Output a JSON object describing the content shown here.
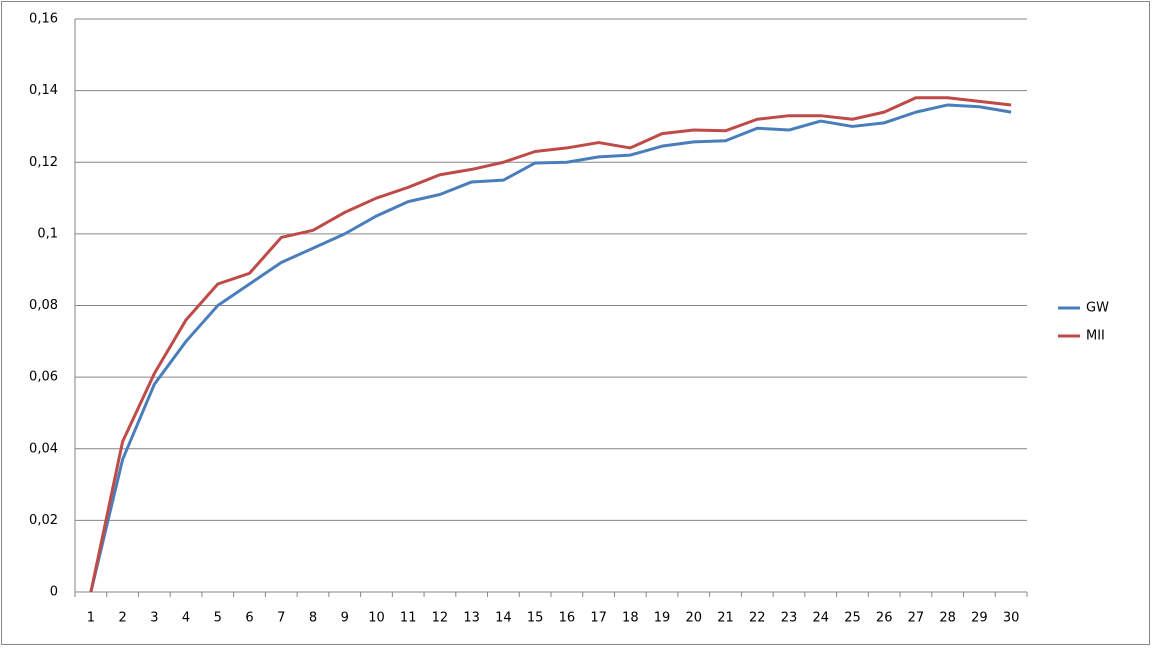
{
  "chart_data": {
    "type": "line",
    "categories": [
      "1",
      "2",
      "3",
      "4",
      "5",
      "6",
      "7",
      "8",
      "9",
      "10",
      "11",
      "12",
      "13",
      "14",
      "15",
      "16",
      "17",
      "18",
      "19",
      "20",
      "21",
      "22",
      "23",
      "24",
      "25",
      "26",
      "27",
      "28",
      "29",
      "30"
    ],
    "series": [
      {
        "name": "GW",
        "color": "#4a7ebb",
        "values": [
          0,
          0.037,
          0.058,
          0.07,
          0.08,
          0.086,
          0.092,
          0.096,
          0.1,
          0.105,
          0.109,
          0.111,
          0.1145,
          0.115,
          0.1198,
          0.12,
          0.1215,
          0.122,
          0.1245,
          0.1257,
          0.126,
          0.1295,
          0.129,
          0.1315,
          0.13,
          0.131,
          0.134,
          0.136,
          0.1355,
          0.134
        ]
      },
      {
        "name": "MII",
        "color": "#be4b48",
        "values": [
          0,
          0.042,
          0.061,
          0.076,
          0.086,
          0.089,
          0.099,
          0.101,
          0.106,
          0.11,
          0.113,
          0.1165,
          0.118,
          0.12,
          0.123,
          0.124,
          0.1255,
          0.124,
          0.128,
          0.129,
          0.1288,
          0.132,
          0.133,
          0.133,
          0.132,
          0.134,
          0.138,
          0.138,
          0.137,
          0.136
        ]
      }
    ],
    "ylim": [
      0,
      0.16
    ],
    "yticks": [
      0,
      {
        "value": 0.02,
        "label": "0,02"
      },
      {
        "value": 0.04,
        "label": "0,04"
      },
      {
        "value": 0.06,
        "label": "0,06"
      },
      {
        "value": 0.08,
        "label": "0,08"
      },
      {
        "value": 0.1,
        "label": "0,1"
      },
      {
        "value": 0.12,
        "label": "0,12"
      },
      {
        "value": 0.14,
        "label": "0,14"
      },
      {
        "value": 0.16,
        "label": "0,16"
      }
    ],
    "grid": true,
    "legend": "right"
  }
}
